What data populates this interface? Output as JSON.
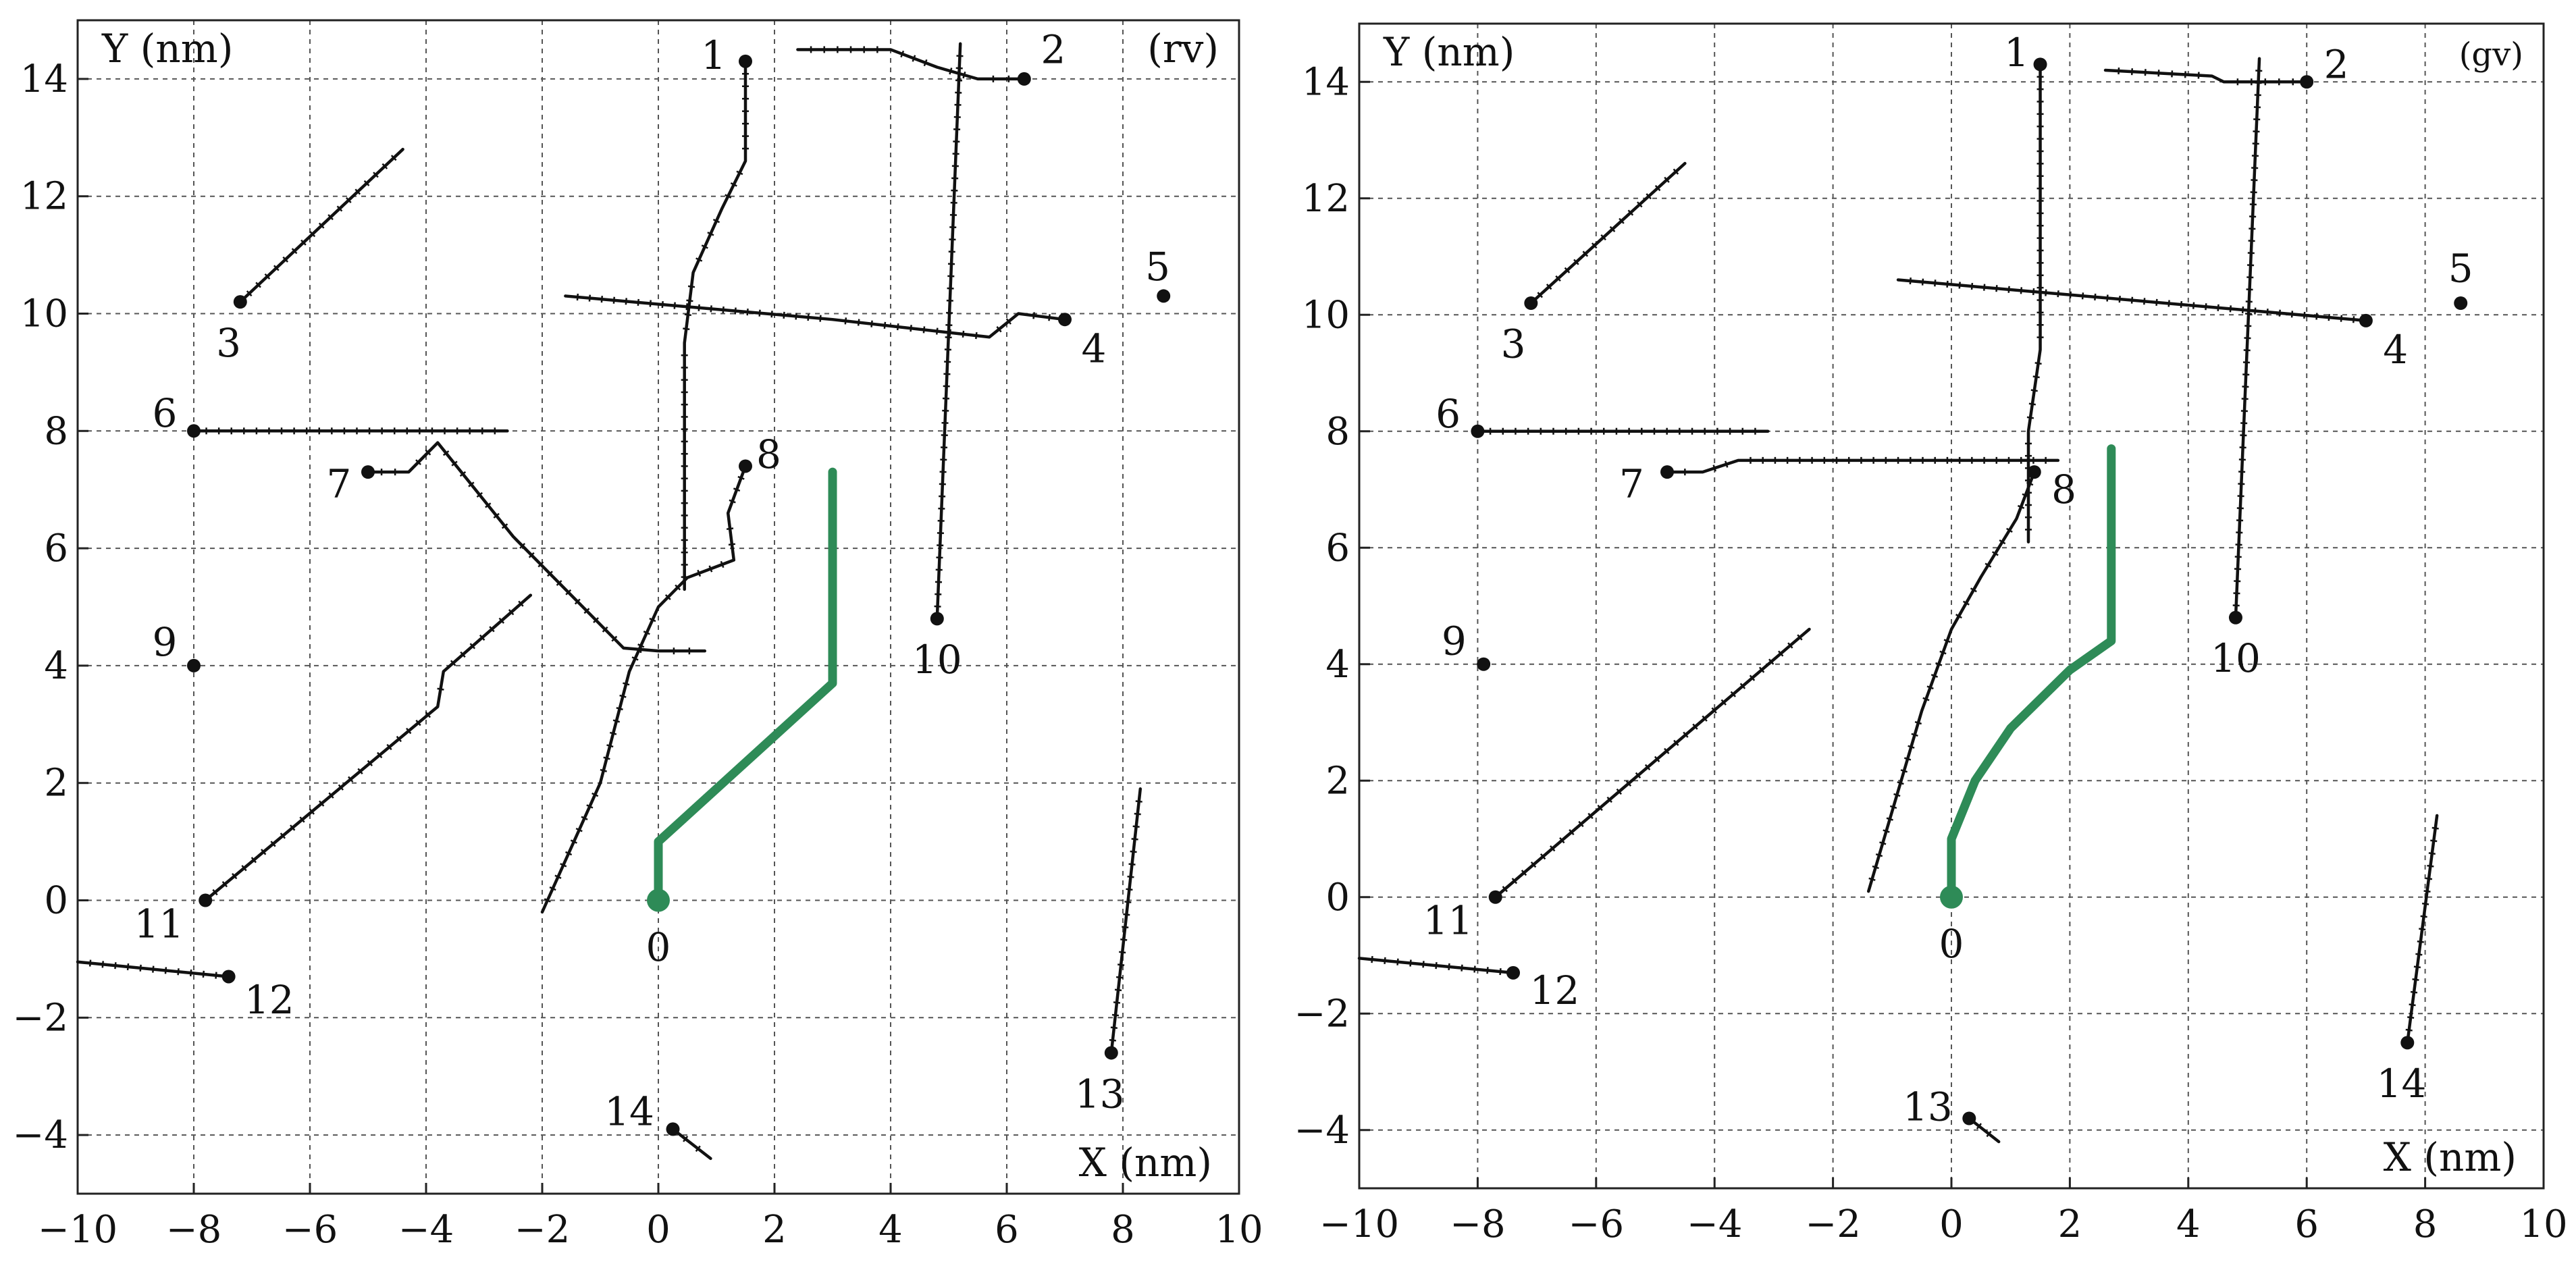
{
  "chart_data": [
    {
      "type": "line",
      "panel_tag": "(rv)",
      "xlabel": "X (nm)",
      "ylabel": "Y (nm)",
      "xlim": [
        -10,
        10
      ],
      "ylim": [
        -5,
        15
      ],
      "xticks": [
        -10,
        -8,
        -6,
        -4,
        -2,
        0,
        2,
        4,
        6,
        8,
        10
      ],
      "yticks": [
        -4,
        -2,
        0,
        2,
        4,
        6,
        8,
        10,
        12,
        14
      ],
      "xtick_labels": [
        "−10",
        "−8",
        "−6",
        "−4",
        "−2",
        "0",
        "2",
        "4",
        "6",
        "8",
        "10"
      ],
      "ytick_labels": [
        "−4",
        "−2",
        "0",
        "2",
        "4",
        "6",
        "8",
        "10",
        "12",
        "14"
      ],
      "grid": true,
      "highlight_color": "#2e8b57",
      "line_color": "#111111",
      "series": [
        {
          "label": "0",
          "highlight": true,
          "points": [
            [
              0,
              0
            ],
            [
              0,
              1
            ],
            [
              3,
              3.7
            ],
            [
              3,
              7.3
            ]
          ],
          "label_pos": [
            0,
            -0.8
          ]
        },
        {
          "label": "1",
          "points": [
            [
              1.5,
              14.3
            ],
            [
              1.5,
              12.6
            ],
            [
              1.1,
              11.8
            ],
            [
              0.6,
              10.7
            ],
            [
              0.45,
              9.5
            ],
            [
              0.45,
              5.3
            ]
          ],
          "label_pos": [
            0.95,
            14.4
          ]
        },
        {
          "label": "2",
          "points": [
            [
              6.3,
              14
            ],
            [
              5.5,
              14
            ],
            [
              4.8,
              14.2
            ],
            [
              4,
              14.5
            ],
            [
              2.4,
              14.5
            ]
          ],
          "label_pos": [
            6.8,
            14.5
          ]
        },
        {
          "label": "3",
          "points": [
            [
              -7.2,
              10.2
            ],
            [
              -4.4,
              12.8
            ]
          ],
          "label_pos": [
            -7.4,
            9.5
          ]
        },
        {
          "label": "4",
          "points": [
            [
              7,
              9.9
            ],
            [
              6.2,
              10
            ],
            [
              5.7,
              9.6
            ],
            [
              3,
              9.9
            ],
            [
              -1.6,
              10.3
            ]
          ],
          "label_pos": [
            7.5,
            9.4
          ]
        },
        {
          "label": "5",
          "points": [
            [
              8.7,
              10.3
            ]
          ],
          "label_pos": [
            8.6,
            10.8
          ]
        },
        {
          "label": "6",
          "points": [
            [
              -8,
              8
            ],
            [
              -2.6,
              8
            ]
          ],
          "label_pos": [
            -8.5,
            8.3
          ]
        },
        {
          "label": "7",
          "points": [
            [
              -5,
              7.3
            ],
            [
              -4.3,
              7.3
            ],
            [
              -3.8,
              7.8
            ],
            [
              -2.5,
              6.2
            ],
            [
              -0.6,
              4.3
            ],
            [
              0,
              4.25
            ],
            [
              0.8,
              4.25
            ]
          ],
          "label_pos": [
            -5.5,
            7.1
          ]
        },
        {
          "label": "8",
          "points": [
            [
              1.5,
              7.4
            ],
            [
              1.2,
              6.6
            ],
            [
              1.3,
              5.8
            ],
            [
              0.5,
              5.5
            ],
            [
              0,
              5
            ],
            [
              -0.5,
              3.9
            ],
            [
              -1,
              2
            ],
            [
              -2,
              -0.2
            ]
          ],
          "label_pos": [
            1.9,
            7.6
          ]
        },
        {
          "label": "9",
          "points": [
            [
              -8,
              4
            ]
          ],
          "label_pos": [
            -8.5,
            4.4
          ]
        },
        {
          "label": "10",
          "points": [
            [
              4.8,
              4.8
            ],
            [
              5.2,
              14.6
            ]
          ],
          "label_pos": [
            4.8,
            4.1
          ]
        },
        {
          "label": "11",
          "points": [
            [
              -7.8,
              0
            ],
            [
              -3.8,
              3.3
            ],
            [
              -3.7,
              3.9
            ],
            [
              -2.2,
              5.2
            ]
          ],
          "label_pos": [
            -8.6,
            -0.4
          ]
        },
        {
          "label": "12",
          "points": [
            [
              -7.4,
              -1.3
            ],
            [
              -10,
              -1.05
            ]
          ],
          "label_pos": [
            -6.7,
            -1.7
          ]
        },
        {
          "label": "13",
          "points": [
            [
              7.8,
              -2.6
            ],
            [
              8.3,
              1.9
            ]
          ],
          "label_pos": [
            7.6,
            -3.3
          ]
        },
        {
          "label": "14",
          "points": [
            [
              0.25,
              -3.9
            ],
            [
              0.9,
              -4.4
            ]
          ],
          "label_pos": [
            -0.5,
            -3.6
          ]
        }
      ]
    },
    {
      "type": "line",
      "panel_tag": "(gv)",
      "xlabel": "X (nm)",
      "ylabel": "Y (nm)",
      "xlim": [
        -10,
        10
      ],
      "ylim": [
        -5,
        15
      ],
      "xticks": [
        -10,
        -8,
        -6,
        -4,
        -2,
        0,
        2,
        4,
        6,
        8,
        10
      ],
      "yticks": [
        -4,
        -2,
        0,
        2,
        4,
        6,
        8,
        10,
        12,
        14
      ],
      "xtick_labels": [
        "−10",
        "−8",
        "−6",
        "−4",
        "−2",
        "0",
        "2",
        "4",
        "6",
        "8",
        "10"
      ],
      "ytick_labels": [
        "−4",
        "−2",
        "0",
        "2",
        "4",
        "6",
        "8",
        "10",
        "12",
        "14"
      ],
      "grid": true,
      "highlight_color": "#2e8b57",
      "line_color": "#111111",
      "series": [
        {
          "label": "0",
          "highlight": true,
          "points": [
            [
              0,
              0
            ],
            [
              0,
              1
            ],
            [
              0.4,
              2
            ],
            [
              1,
              2.9
            ],
            [
              2,
              3.9
            ],
            [
              2.7,
              4.4
            ],
            [
              2.7,
              7.7
            ]
          ],
          "label_pos": [
            0,
            -0.8
          ]
        },
        {
          "label": "1",
          "points": [
            [
              1.5,
              14.3
            ],
            [
              1.5,
              9.4
            ],
            [
              1.3,
              8
            ],
            [
              1.3,
              6.1
            ]
          ],
          "label_pos": [
            1.1,
            14.5
          ]
        },
        {
          "label": "2",
          "points": [
            [
              6,
              14
            ],
            [
              4.6,
              14
            ],
            [
              4.4,
              14.1
            ],
            [
              2.6,
              14.2
            ]
          ],
          "label_pos": [
            6.5,
            14.3
          ]
        },
        {
          "label": "3",
          "points": [
            [
              -7.1,
              10.2
            ],
            [
              -4.5,
              12.6
            ]
          ],
          "label_pos": [
            -7.4,
            9.5
          ]
        },
        {
          "label": "4",
          "points": [
            [
              7,
              9.9
            ],
            [
              -0.9,
              10.6
            ]
          ],
          "label_pos": [
            7.5,
            9.4
          ]
        },
        {
          "label": "5",
          "points": [
            [
              8.6,
              10.2
            ]
          ],
          "label_pos": [
            8.6,
            10.8
          ]
        },
        {
          "label": "6",
          "points": [
            [
              -8,
              8
            ],
            [
              -3.1,
              8
            ]
          ],
          "label_pos": [
            -8.5,
            8.3
          ]
        },
        {
          "label": "7",
          "points": [
            [
              -4.8,
              7.3
            ],
            [
              -4.2,
              7.3
            ],
            [
              -3.6,
              7.5
            ],
            [
              1.8,
              7.5
            ]
          ],
          "label_pos": [
            -5.4,
            7.1
          ]
        },
        {
          "label": "8",
          "points": [
            [
              1.4,
              7.3
            ],
            [
              1.1,
              6.5
            ],
            [
              0.5,
              5.5
            ],
            [
              0,
              4.6
            ],
            [
              -0.5,
              3.2
            ],
            [
              -1.4,
              0.1
            ]
          ],
          "label_pos": [
            1.9,
            7.0
          ]
        },
        {
          "label": "9",
          "points": [
            [
              -7.9,
              4
            ]
          ],
          "label_pos": [
            -8.4,
            4.4
          ]
        },
        {
          "label": "10",
          "points": [
            [
              4.8,
              4.8
            ],
            [
              5.2,
              14.4
            ]
          ],
          "label_pos": [
            4.8,
            4.1
          ]
        },
        {
          "label": "11",
          "points": [
            [
              -7.7,
              0
            ],
            [
              -2.4,
              4.6
            ]
          ],
          "label_pos": [
            -8.5,
            -0.4
          ]
        },
        {
          "label": "12",
          "points": [
            [
              -7.4,
              -1.3
            ],
            [
              -10,
              -1.05
            ]
          ],
          "label_pos": [
            -6.7,
            -1.6
          ]
        },
        {
          "label": "13",
          "points": [
            [
              0.3,
              -3.8
            ],
            [
              0.8,
              -4.2
            ]
          ],
          "label_pos": [
            -0.4,
            -3.6
          ]
        },
        {
          "label": "14",
          "points": [
            [
              7.7,
              -2.5
            ],
            [
              8.2,
              1.4
            ]
          ],
          "label_pos": [
            7.6,
            -3.2
          ]
        }
      ]
    }
  ]
}
